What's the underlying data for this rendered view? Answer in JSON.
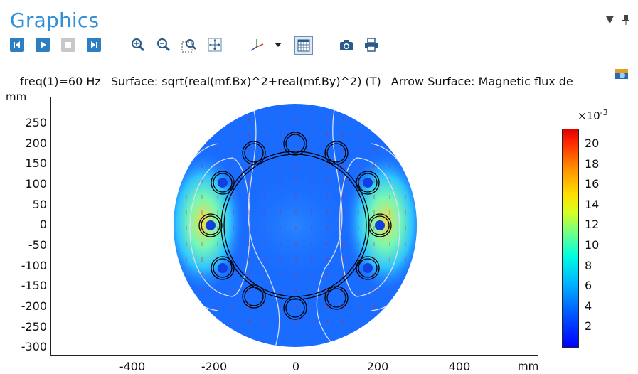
{
  "panel": {
    "title": "Graphics"
  },
  "toolbar": {
    "buttons": [
      "first-frame",
      "play",
      "stop",
      "last-frame",
      "zoom-in",
      "zoom-out",
      "zoom-box",
      "zoom-extents",
      "axis-orientation",
      "grid",
      "camera",
      "print"
    ]
  },
  "expression": {
    "freq": "freq(1)=60 Hz",
    "surface": "Surface: sqrt(real(mf.Bx)^2+real(mf.By)^2) (T)",
    "arrow": "Arrow Surface: Magnetic flux de"
  },
  "axes": {
    "y_unit": "mm",
    "x_unit": "mm",
    "y_ticks": [
      "250",
      "200",
      "150",
      "100",
      "50",
      "0",
      "-50",
      "-100",
      "-150",
      "-200",
      "-250",
      "-300"
    ],
    "x_ticks": [
      "-400",
      "-200",
      "0",
      "200",
      "400"
    ]
  },
  "colorbar": {
    "title": "×10",
    "exponent": "-3",
    "ticks": [
      "20",
      "18",
      "16",
      "14",
      "12",
      "10",
      "8",
      "6",
      "4",
      "2"
    ],
    "colors": [
      "#0000ff",
      "#00b8ff",
      "#6cff8a",
      "#ffe000",
      "#ff2800"
    ]
  },
  "colors": {
    "title": "#2f8fd8",
    "field_base": "#1a6cff"
  }
}
